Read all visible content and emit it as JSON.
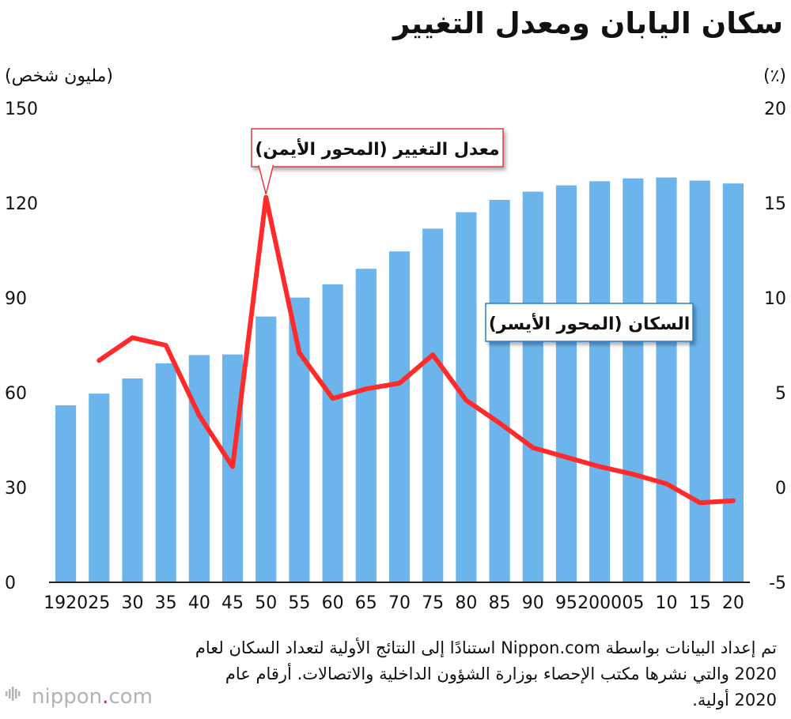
{
  "title": "سكان اليابان ومعدل التغيير",
  "chart_data": {
    "type": "bar+line",
    "title": "سكان اليابان ومعدل التغيير",
    "left_axis_label": "(مليون شخص)",
    "right_axis_label": "(٪)",
    "left_ticks": [
      "150",
      "120",
      "90",
      "60",
      "30",
      "0"
    ],
    "right_ticks": [
      "20",
      "15",
      "10",
      "5",
      "0",
      "-5"
    ],
    "left_range": [
      0,
      150
    ],
    "right_range": [
      -5,
      20
    ],
    "categories": [
      "1920",
      "25",
      "30",
      "35",
      "40",
      "45",
      "50",
      "55",
      "60",
      "65",
      "70",
      "75",
      "80",
      "85",
      "90",
      "95",
      "2000",
      "05",
      "10",
      "15",
      "20"
    ],
    "series": [
      {
        "name": "السكان (المحور الأيسر)",
        "axis": "left",
        "type": "bar",
        "values": [
          56.0,
          59.7,
          64.5,
          69.3,
          71.9,
          72.1,
          84.1,
          90.1,
          94.3,
          99.2,
          104.7,
          111.9,
          117.1,
          121.0,
          123.6,
          125.6,
          126.9,
          127.8,
          128.1,
          127.1,
          126.2
        ]
      },
      {
        "name": "معدل التغيير (المحور الأيمن)",
        "axis": "right",
        "type": "line",
        "values": [
          null,
          6.7,
          7.9,
          7.5,
          3.8,
          1.1,
          15.3,
          7.1,
          4.7,
          5.2,
          5.5,
          7.0,
          4.6,
          3.4,
          2.1,
          1.6,
          1.1,
          0.7,
          0.2,
          -0.8,
          -0.7
        ]
      }
    ],
    "bar_color": "#6cb4ec",
    "line_color": "#ff2b2b",
    "label_population": "السكان (المحور الأيسر)",
    "label_rate": "معدل التغيير (المحور الأيمن)"
  },
  "source": "تم إعداد البيانات بواسطة Nippon.com استنادًا إلى النتائج الأولية لتعداد السكان لعام 2020 والتي نشرها مكتب الإحصاء بوزارة الشؤون الداخلية والاتصالات. أرقام عام 2020 أولية.",
  "logo": {
    "name": "nippon",
    "dot": ".",
    "suffix": "com"
  }
}
